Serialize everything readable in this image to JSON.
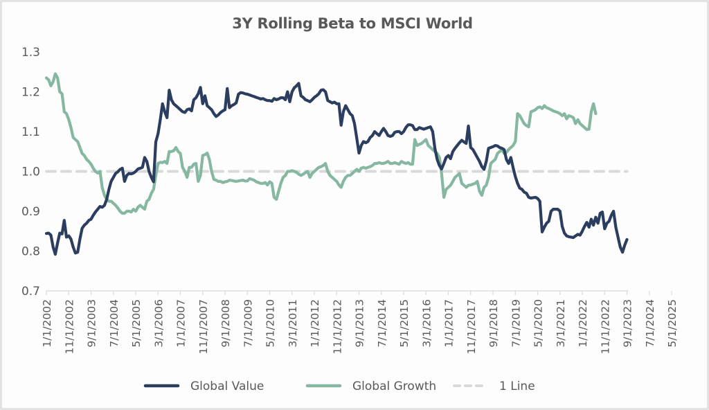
{
  "chart_data": {
    "type": "line",
    "title": "3Y Rolling Beta to MSCI World",
    "xlabel": "",
    "ylabel": "",
    "ylim": [
      0.7,
      1.3
    ],
    "yticks": [
      "1.3",
      "1.2",
      "1.1",
      "1.0",
      "0.9",
      "0.8",
      "0.7"
    ],
    "ytick_values": [
      1.3,
      1.2,
      1.1,
      1.0,
      0.9,
      0.8,
      0.7
    ],
    "grid": false,
    "legend_position": "bottom",
    "x_start": "1/1/2002",
    "x_frequency": "monthly",
    "xticks": [
      "1/1/2002",
      "11/1/2002",
      "9/1/2003",
      "7/1/2004",
      "5/1/2005",
      "3/1/2006",
      "1/1/2007",
      "11/1/2007",
      "9/1/2008",
      "7/1/2009",
      "5/1/2010",
      "3/1/2011",
      "1/1/2012",
      "11/1/2012",
      "9/1/2013",
      "7/1/2014",
      "5/1/2015",
      "3/1/2016",
      "1/1/2017",
      "11/1/2017",
      "9/1/2018",
      "7/1/2019",
      "5/1/2020",
      "3/1/2021",
      "1/1/2022",
      "11/1/2022",
      "9/1/2023",
      "7/1/2024",
      "5/1/2025"
    ],
    "tick_interval_months": 10,
    "series": [
      {
        "name": "Global Value",
        "color": "#2c3e5f",
        "style": "solid",
        "values": [
          0.844,
          0.845,
          0.84,
          0.81,
          0.792,
          0.82,
          0.845,
          0.843,
          0.877,
          0.835,
          0.838,
          0.83,
          0.81,
          0.795,
          0.797,
          0.83,
          0.857,
          0.865,
          0.87,
          0.877,
          0.88,
          0.89,
          0.898,
          0.905,
          0.912,
          0.91,
          0.915,
          0.93,
          0.955,
          0.975,
          0.985,
          0.995,
          0.999,
          1.005,
          1.008,
          0.975,
          0.99,
          0.995,
          0.994,
          0.996,
          1.0,
          1.006,
          1.008,
          1.01,
          1.035,
          1.025,
          1.0,
          0.985,
          0.974,
          1.074,
          1.095,
          1.13,
          1.17,
          1.15,
          1.135,
          1.204,
          1.18,
          1.17,
          1.165,
          1.16,
          1.155,
          1.15,
          1.148,
          1.155,
          1.157,
          1.152,
          1.18,
          1.185,
          1.195,
          1.211,
          1.17,
          1.19,
          1.165,
          1.16,
          1.155,
          1.145,
          1.138,
          1.142,
          1.148,
          1.152,
          1.155,
          1.208,
          1.16,
          1.165,
          1.168,
          1.172,
          1.194,
          1.198,
          1.197,
          1.195,
          1.194,
          1.192,
          1.19,
          1.188,
          1.186,
          1.184,
          1.182,
          1.183,
          1.18,
          1.178,
          1.178,
          1.176,
          1.183,
          1.18,
          1.182,
          1.185,
          1.185,
          1.18,
          1.2,
          1.175,
          1.2,
          1.21,
          1.215,
          1.221,
          1.19,
          1.186,
          1.18,
          1.178,
          1.175,
          1.18,
          1.186,
          1.19,
          1.195,
          1.204,
          1.205,
          1.2,
          1.178,
          1.175,
          1.172,
          1.174,
          1.17,
          1.17,
          1.116,
          1.15,
          1.165,
          1.155,
          1.145,
          1.14,
          1.12,
          1.083,
          1.046,
          1.065,
          1.075,
          1.072,
          1.075,
          1.085,
          1.09,
          1.1,
          1.095,
          1.09,
          1.1,
          1.108,
          1.1,
          1.09,
          1.088,
          1.09,
          1.098,
          1.1,
          1.1,
          1.095,
          1.1,
          1.11,
          1.117,
          1.117,
          1.115,
          1.105,
          1.105,
          1.11,
          1.108,
          1.106,
          1.108,
          1.11,
          1.112,
          1.1,
          1.058,
          1.03,
          1.015,
          1.006,
          1.02,
          1.035,
          1.04,
          1.032,
          1.05,
          1.058,
          1.065,
          1.072,
          1.078,
          1.074,
          1.07,
          1.114,
          1.06,
          1.055,
          1.045,
          1.035,
          1.025,
          1.012,
          1.005,
          1.025,
          1.058,
          1.06,
          1.062,
          1.065,
          1.064,
          1.06,
          1.058,
          1.055,
          1.03,
          1.02,
          1.035,
          1.01,
          0.987,
          0.97,
          0.958,
          0.955,
          0.948,
          0.945,
          0.935,
          0.933,
          0.934,
          0.935,
          0.932,
          0.925,
          0.848,
          0.86,
          0.87,
          0.875,
          0.9,
          0.905,
          0.905,
          0.905,
          0.9,
          0.862,
          0.845,
          0.838,
          0.836,
          0.835,
          0.834,
          0.838,
          0.842,
          0.84,
          0.85,
          0.862,
          0.872,
          0.86,
          0.88,
          0.865,
          0.885,
          0.87,
          0.895,
          0.898,
          0.856,
          0.87,
          0.875,
          0.89,
          0.9,
          0.86,
          0.835,
          0.81,
          0.797,
          0.815,
          0.829
        ]
      },
      {
        "name": "Global Growth",
        "color": "#86b7a1",
        "style": "solid",
        "values": [
          1.235,
          1.23,
          1.215,
          1.225,
          1.245,
          1.235,
          1.2,
          1.195,
          1.15,
          1.145,
          1.13,
          1.11,
          1.085,
          1.08,
          1.075,
          1.06,
          1.045,
          1.04,
          1.03,
          1.025,
          1.018,
          1.008,
          1.0,
          0.996,
          1.0,
          0.96,
          0.94,
          0.93,
          0.925,
          0.925,
          0.92,
          0.915,
          0.908,
          0.9,
          0.895,
          0.895,
          0.9,
          0.9,
          0.898,
          0.905,
          0.9,
          0.91,
          0.915,
          0.91,
          0.905,
          0.925,
          0.93,
          0.945,
          0.955,
          0.99,
          1.02,
          1.023,
          1.022,
          1.025,
          1.02,
          1.05,
          1.05,
          1.052,
          1.06,
          1.05,
          1.045,
          1.01,
          1.0,
          0.985,
          1.01,
          1.01,
          1.018,
          1.02,
          0.975,
          0.99,
          1.04,
          1.042,
          1.046,
          1.03,
          1.0,
          0.98,
          0.978,
          0.975,
          0.975,
          0.972,
          0.974,
          0.975,
          0.978,
          0.977,
          0.976,
          0.975,
          0.976,
          0.977,
          0.978,
          0.976,
          0.976,
          0.982,
          0.98,
          0.978,
          0.974,
          0.972,
          0.97,
          0.97,
          0.972,
          0.966,
          0.974,
          0.97,
          0.935,
          0.93,
          0.95,
          0.97,
          0.985,
          0.99,
          1.0,
          1.0,
          1.002,
          1.0,
          0.998,
          0.993,
          0.99,
          0.993,
          0.997,
          1.0,
          0.985,
          0.995,
          1.0,
          1.005,
          1.01,
          1.012,
          1.015,
          1.02,
          1.0,
          0.99,
          0.985,
          0.98,
          0.975,
          0.966,
          0.96,
          0.975,
          0.985,
          0.99,
          0.99,
          0.995,
          1.0,
          1.005,
          1.0,
          1.008,
          1.01,
          1.008,
          1.01,
          1.012,
          1.015,
          1.02,
          1.02,
          1.022,
          1.02,
          1.02,
          1.022,
          1.025,
          1.02,
          1.02,
          1.022,
          1.02,
          1.018,
          1.025,
          1.022,
          1.02,
          1.022,
          1.018,
          1.018,
          1.08,
          1.065,
          1.068,
          1.07,
          1.075,
          1.08,
          1.065,
          1.06,
          1.055,
          1.05,
          1.045,
          1.035,
          0.995,
          0.935,
          0.955,
          0.96,
          0.965,
          0.975,
          0.985,
          0.99,
          0.995,
          0.97,
          0.965,
          0.96,
          0.965,
          0.966,
          0.968,
          0.97,
          0.975,
          0.95,
          0.94,
          0.96,
          0.965,
          0.985,
          1.02,
          1.025,
          1.03,
          1.045,
          1.05,
          1.055,
          1.045,
          1.048,
          1.055,
          1.06,
          1.065,
          1.075,
          1.145,
          1.14,
          1.13,
          1.12,
          1.115,
          1.112,
          1.15,
          1.152,
          1.155,
          1.16,
          1.162,
          1.158,
          1.165,
          1.16,
          1.158,
          1.155,
          1.152,
          1.15,
          1.148,
          1.145,
          1.14,
          1.145,
          1.132,
          1.14,
          1.138,
          1.135,
          1.12,
          1.13,
          1.12,
          1.115,
          1.11,
          1.105,
          1.106,
          1.15,
          1.17,
          1.145
        ]
      },
      {
        "name": "1 Line",
        "color": "#d9d9d9",
        "style": "dashed",
        "constant": 1.0
      }
    ]
  }
}
